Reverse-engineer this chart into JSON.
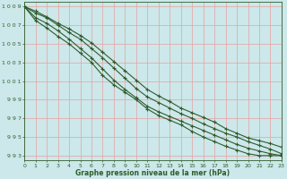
{
  "title": "Graphe pression niveau de la mer (hPa)",
  "bg_color": "#cce8ea",
  "grid_color": "#e8a0a0",
  "line_color": "#2d5c2d",
  "xlim": [
    0,
    23
  ],
  "ylim": [
    992.5,
    1009.5
  ],
  "yticks": [
    993,
    995,
    997,
    999,
    1001,
    1003,
    1005,
    1007,
    1009
  ],
  "xticks": [
    0,
    1,
    2,
    3,
    4,
    5,
    6,
    7,
    8,
    9,
    10,
    11,
    12,
    13,
    14,
    15,
    16,
    17,
    18,
    19,
    20,
    21,
    22,
    23
  ],
  "series": [
    [
      1009.0,
      1008.3,
      1007.8,
      1007.0,
      1006.2,
      1005.5,
      1004.5,
      1003.5,
      1002.4,
      1001.3,
      1000.2,
      999.3,
      998.7,
      998.1,
      997.5,
      997.0,
      996.4,
      995.9,
      995.4,
      995.0,
      994.5,
      994.1,
      993.7,
      993.2
    ],
    [
      1009.0,
      1007.8,
      1007.2,
      1006.4,
      1005.5,
      1004.5,
      1003.5,
      1002.3,
      1001.1,
      1000.1,
      999.2,
      998.3,
      997.7,
      997.2,
      996.7,
      996.2,
      995.7,
      995.2,
      994.7,
      994.2,
      993.8,
      993.5,
      993.2,
      993.0
    ],
    [
      1009.0,
      1007.5,
      1006.7,
      1005.8,
      1005.0,
      1004.0,
      1003.0,
      1001.6,
      1000.6,
      999.8,
      999.0,
      998.0,
      997.3,
      996.8,
      996.3,
      995.6,
      995.0,
      994.5,
      994.0,
      993.6,
      993.2,
      993.0,
      993.0,
      993.0
    ],
    [
      1009.0,
      1008.5,
      1007.9,
      1007.2,
      1006.6,
      1005.9,
      1005.1,
      1004.1,
      1003.1,
      1002.1,
      1001.1,
      1000.1,
      999.4,
      998.8,
      998.1,
      997.6,
      997.1,
      996.6,
      995.9,
      995.4,
      994.9,
      994.6,
      994.3,
      993.9
    ]
  ]
}
